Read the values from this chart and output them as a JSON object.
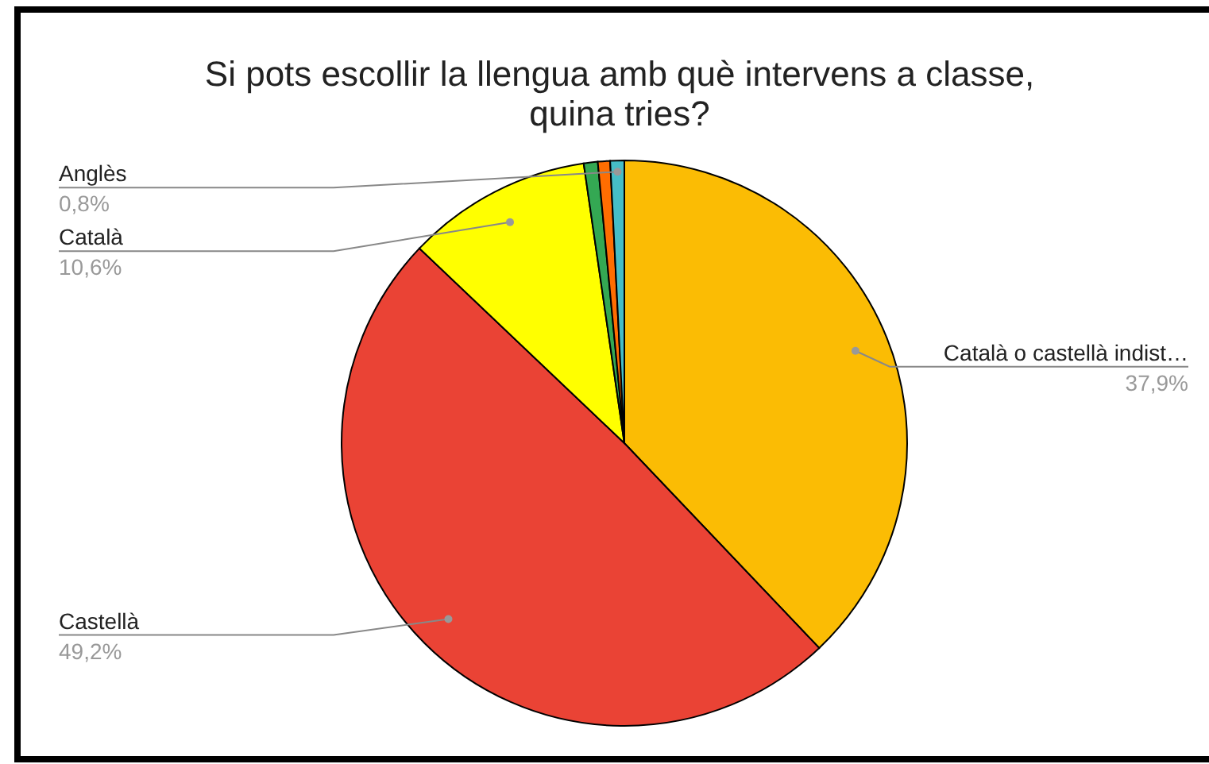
{
  "chart_data": {
    "type": "pie",
    "title": "Si pots escollir la llengua amb què intervens a classe,\nquina tries?",
    "categories": [
      "Català o castellà indist…",
      "Castellà",
      "Català",
      null,
      null,
      "Anglès"
    ],
    "values": [
      37.9,
      49.2,
      10.6,
      0.8,
      0.7,
      0.8
    ],
    "colors": [
      "#fbbc04",
      "#ea4335",
      "#ffff00",
      "#34a853",
      "#ff6d01",
      "#46bdc6"
    ],
    "value_labels": [
      "37,9%",
      "49,2%",
      "10,6%",
      null,
      null,
      "0,8%"
    ],
    "legend": false
  }
}
